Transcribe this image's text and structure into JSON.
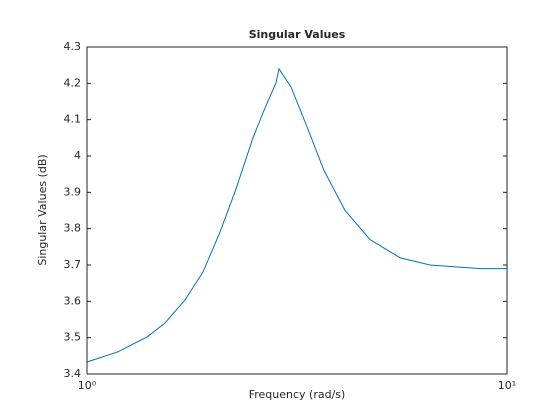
{
  "chart_data": {
    "type": "line",
    "title": "Singular Values",
    "x_label": "Frequency (rad/s)",
    "y_label": "Singular Values (dB)",
    "x": [
      1,
      1.185,
      1.39,
      1.533,
      1.712,
      1.889,
      2.074,
      2.263,
      2.484,
      2.653,
      2.818,
      2.865,
      3.06,
      3.342,
      3.667,
      4.115,
      4.718,
      5.562,
      6.556,
      8.627,
      10
    ],
    "series": [
      {
        "name": "Singular Values",
        "color": "#0072bd",
        "values": [
          3.433,
          3.461,
          3.502,
          3.54,
          3.604,
          3.681,
          3.791,
          3.909,
          4.05,
          4.132,
          4.201,
          4.24,
          4.19,
          4.08,
          3.96,
          3.85,
          3.77,
          3.72,
          3.7,
          3.69,
          3.69
        ]
      }
    ],
    "xlim": [
      1,
      10
    ],
    "xscale": "log",
    "xticks": [
      {
        "value": 1,
        "label": "10⁰"
      },
      {
        "value": 10,
        "label": "10¹"
      }
    ],
    "ylim": [
      3.4,
      4.3
    ],
    "yticks": [
      3.4,
      3.5,
      3.6,
      3.7,
      3.8,
      3.9,
      4,
      4.1,
      4.2,
      4.3
    ],
    "grid": false
  }
}
